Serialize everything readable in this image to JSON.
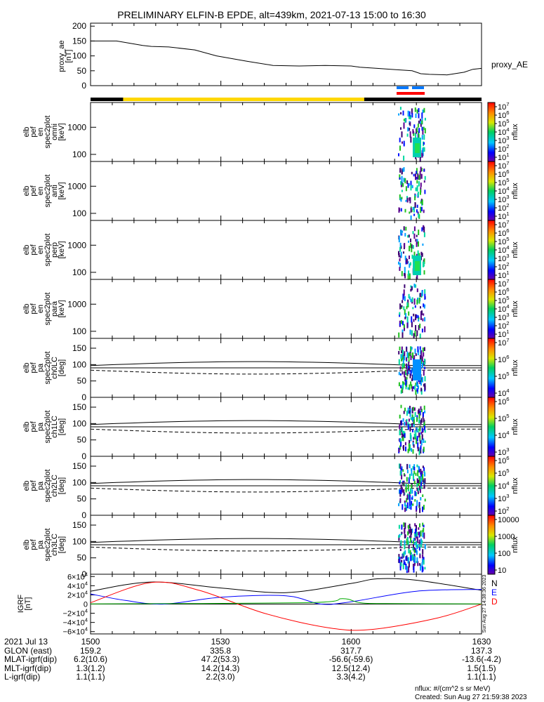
{
  "chart_data": {
    "type": "line",
    "title": "PRELIMINARY ELFIN-B EPDE, alt=439km, 2021-07-13 15:00 to 16:30",
    "x_ticks": [
      "1500",
      "1530",
      "1600",
      "1630"
    ],
    "proxy_ae": {
      "ylabel": [
        "proxy_ae",
        "[nT]"
      ],
      "legend": "proxy_AE",
      "yticks": [
        "200",
        "150",
        "100",
        "50",
        "0"
      ],
      "ylim": [
        0,
        210
      ],
      "x_minutes": [
        0,
        6,
        8,
        12,
        14,
        18,
        24,
        29,
        36,
        42,
        48,
        54,
        60,
        62,
        66,
        70,
        74,
        76,
        78,
        82,
        86,
        88,
        90
      ],
      "values": [
        150,
        150,
        145,
        135,
        132,
        130,
        120,
        100,
        82,
        68,
        66,
        68,
        66,
        62,
        58,
        54,
        50,
        40,
        38,
        36,
        45,
        55,
        58
      ]
    },
    "spectrograms": [
      {
        "ylabel": [
          "elb",
          "pef",
          "en",
          "spec2plot",
          "omni",
          "[keV]"
        ],
        "yticks": [
          "1000",
          "100"
        ],
        "cbar_ticks": [
          "10^1",
          "10^2",
          "10^3",
          "10^4",
          "10^5",
          "10^6",
          "10^7"
        ],
        "cbar_label": "nflux"
      },
      {
        "ylabel": [
          "elb",
          "pef",
          "en",
          "spec2plot",
          "anti",
          "[keV]"
        ],
        "yticks": [
          "1000",
          "100"
        ],
        "cbar_ticks": [
          "10^1",
          "10^2",
          "10^3",
          "10^4",
          "10^5",
          "10^6",
          "10^7"
        ],
        "cbar_label": "nflux"
      },
      {
        "ylabel": [
          "elb",
          "pef",
          "en",
          "spec2plot",
          "perp",
          "[keV]"
        ],
        "yticks": [
          "1000",
          "100"
        ],
        "cbar_ticks": [
          "10^1",
          "10^2",
          "10^3",
          "10^4",
          "10^5",
          "10^6",
          "10^7"
        ],
        "cbar_label": "nflux"
      },
      {
        "ylabel": [
          "elb",
          "pef",
          "en",
          "spec2plot",
          "para",
          "[keV]"
        ],
        "yticks": [
          "1000",
          "100"
        ],
        "cbar_ticks": [
          "10^1",
          "10^2",
          "10^3",
          "10^4",
          "10^5",
          "10^6",
          "10^7"
        ],
        "cbar_label": "nflux"
      },
      {
        "ylabel": [
          "elb",
          "pef",
          "pa",
          "spec2plot",
          "ch0LC",
          "[deg]"
        ],
        "yticks": [
          "150",
          "100",
          "50",
          "0"
        ],
        "cbar_ticks": [
          "10^4",
          "10^5",
          "10^6",
          "10^7"
        ],
        "cbar_label": "nflux"
      },
      {
        "ylabel": [
          "elb",
          "pef",
          "pa",
          "spec2plot",
          "ch1LC",
          "[deg]"
        ],
        "yticks": [
          "150",
          "100",
          "50",
          "0"
        ],
        "cbar_ticks": [
          "10^3",
          "10^4",
          "10^5",
          "10^6"
        ],
        "cbar_label": "nflux"
      },
      {
        "ylabel": [
          "elb",
          "pef",
          "pa",
          "spec2plot",
          "ch2LC",
          "[deg]"
        ],
        "yticks": [
          "150",
          "100",
          "50",
          "0"
        ],
        "cbar_ticks": [
          "10^2",
          "10^3",
          "10^4",
          "10^5",
          "10^6"
        ],
        "cbar_label": "nflux"
      },
      {
        "ylabel": [
          "elb",
          "pef",
          "pa",
          "spec2plot",
          "ch3LC",
          "[deg]"
        ],
        "yticks": [
          "150",
          "100",
          "50",
          "0"
        ],
        "cbar_ticks": [
          "10",
          "100",
          "1000",
          "10000"
        ],
        "cbar_label": "nflux"
      }
    ],
    "igrf": {
      "ylabel": [
        "IGRF",
        "[nT]"
      ],
      "yticks": [
        "6×10^4",
        "4×10^4",
        "2×10^4",
        "0",
        "−2×10^4",
        "−4×10^4",
        "−6×10^4"
      ],
      "ylim": [
        -65000,
        65000
      ],
      "series": [
        {
          "name": "N",
          "color": "#000000",
          "x_minutes": [
            0,
            14,
            30,
            45,
            60,
            66,
            75,
            90
          ],
          "values": [
            28000,
            48000,
            35000,
            25000,
            45000,
            55000,
            52000,
            30000
          ]
        },
        {
          "name": "E",
          "color": "#0000ff",
          "x_minutes": [
            0,
            8,
            17,
            30,
            45,
            53,
            60,
            75,
            90
          ],
          "values": [
            22000,
            8000,
            0,
            15000,
            18000,
            0,
            5000,
            28000,
            32000
          ]
        },
        {
          "name": "D",
          "color": "#ff0000",
          "x_minutes": [
            0,
            14,
            25,
            40,
            55,
            65,
            80,
            90
          ],
          "values": [
            3000,
            47000,
            30000,
            -20000,
            -52000,
            -55000,
            -30000,
            0
          ]
        },
        {
          "color": "#00aa00",
          "x_minutes": [
            0,
            50,
            58,
            62,
            68,
            90
          ],
          "values": [
            500,
            3000,
            12000,
            3000,
            1000,
            500
          ]
        }
      ],
      "side_text": "Sun Aug 27 14:38:36 2023"
    },
    "orbit_table": {
      "rows": [
        {
          "label": "2021 Jul 13",
          "values": [
            "1500",
            "1530",
            "1600",
            "1630"
          ]
        },
        {
          "label": "GLON (east)",
          "values": [
            "159.2",
            "335.8",
            "317.7",
            "137.3"
          ]
        },
        {
          "label": "MLAT-igrf(dip)",
          "values": [
            "6.2(10.6)",
            "47.2(53.3)",
            "-56.6(-59.6)",
            "-13.6(-4.2)"
          ]
        },
        {
          "label": "MLT-igrf(dip)",
          "values": [
            "1.3(1.2)",
            "14.2(14.3)",
            "12.5(12.4)",
            "1.5(1.5)"
          ]
        },
        {
          "label": "L-igrf(dip)",
          "values": [
            "1.1(1.1)",
            "2.2(3.0)",
            "3.3(4.2)",
            "1.1(1.1)"
          ]
        }
      ]
    },
    "footnote": "nflux: #/(cm^2 s sr MeV)",
    "created": "Created: Sun Aug 27 21:59:38 2023"
  },
  "colors": {
    "ae_line": "#000000",
    "bar_day": "#ffd700",
    "bar_night": "#000000",
    "sci_zone_blue": "#0077ff",
    "sci_zone_red": "#ff0000"
  }
}
